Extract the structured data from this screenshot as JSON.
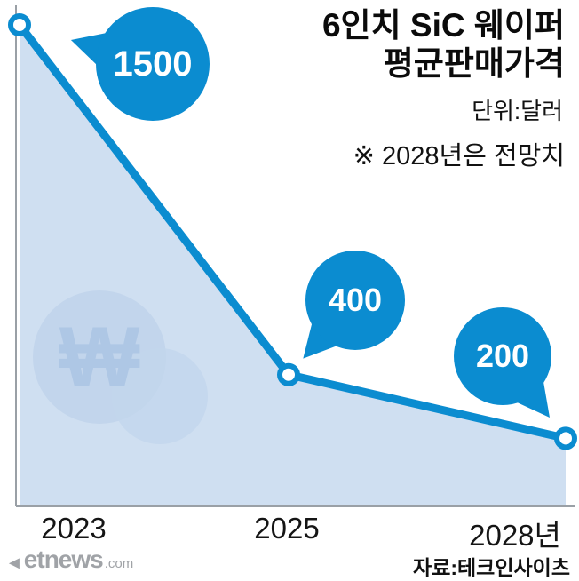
{
  "header": {
    "title_line1": "6인치 SiC 웨이퍼",
    "title_line2": "평균판매가격",
    "unit": "단위:달러",
    "note": "※ 2028년은 전망치"
  },
  "footer": {
    "source": "자료:테크인사이츠"
  },
  "watermark": {
    "currency_symbol": "₩",
    "logo_triangle": "◄",
    "logo_text": "etnews",
    "logo_suffix": ".com"
  },
  "chart_data": {
    "type": "area",
    "title": "6인치 SiC 웨이퍼 평균판매가격",
    "unit": "달러",
    "note": "2028년은 전망치",
    "categories": [
      "2023",
      "2025",
      "2028년"
    ],
    "values": [
      1500,
      400,
      200
    ],
    "ylim": [
      0,
      1500
    ],
    "legend": "none",
    "grid": "off",
    "colors": {
      "line": "#0b8cd0",
      "bubble": "#0b8cd0",
      "area": "#cfdff1",
      "axis": "#9aa0a6",
      "watermark": "#c2d5ec"
    }
  }
}
